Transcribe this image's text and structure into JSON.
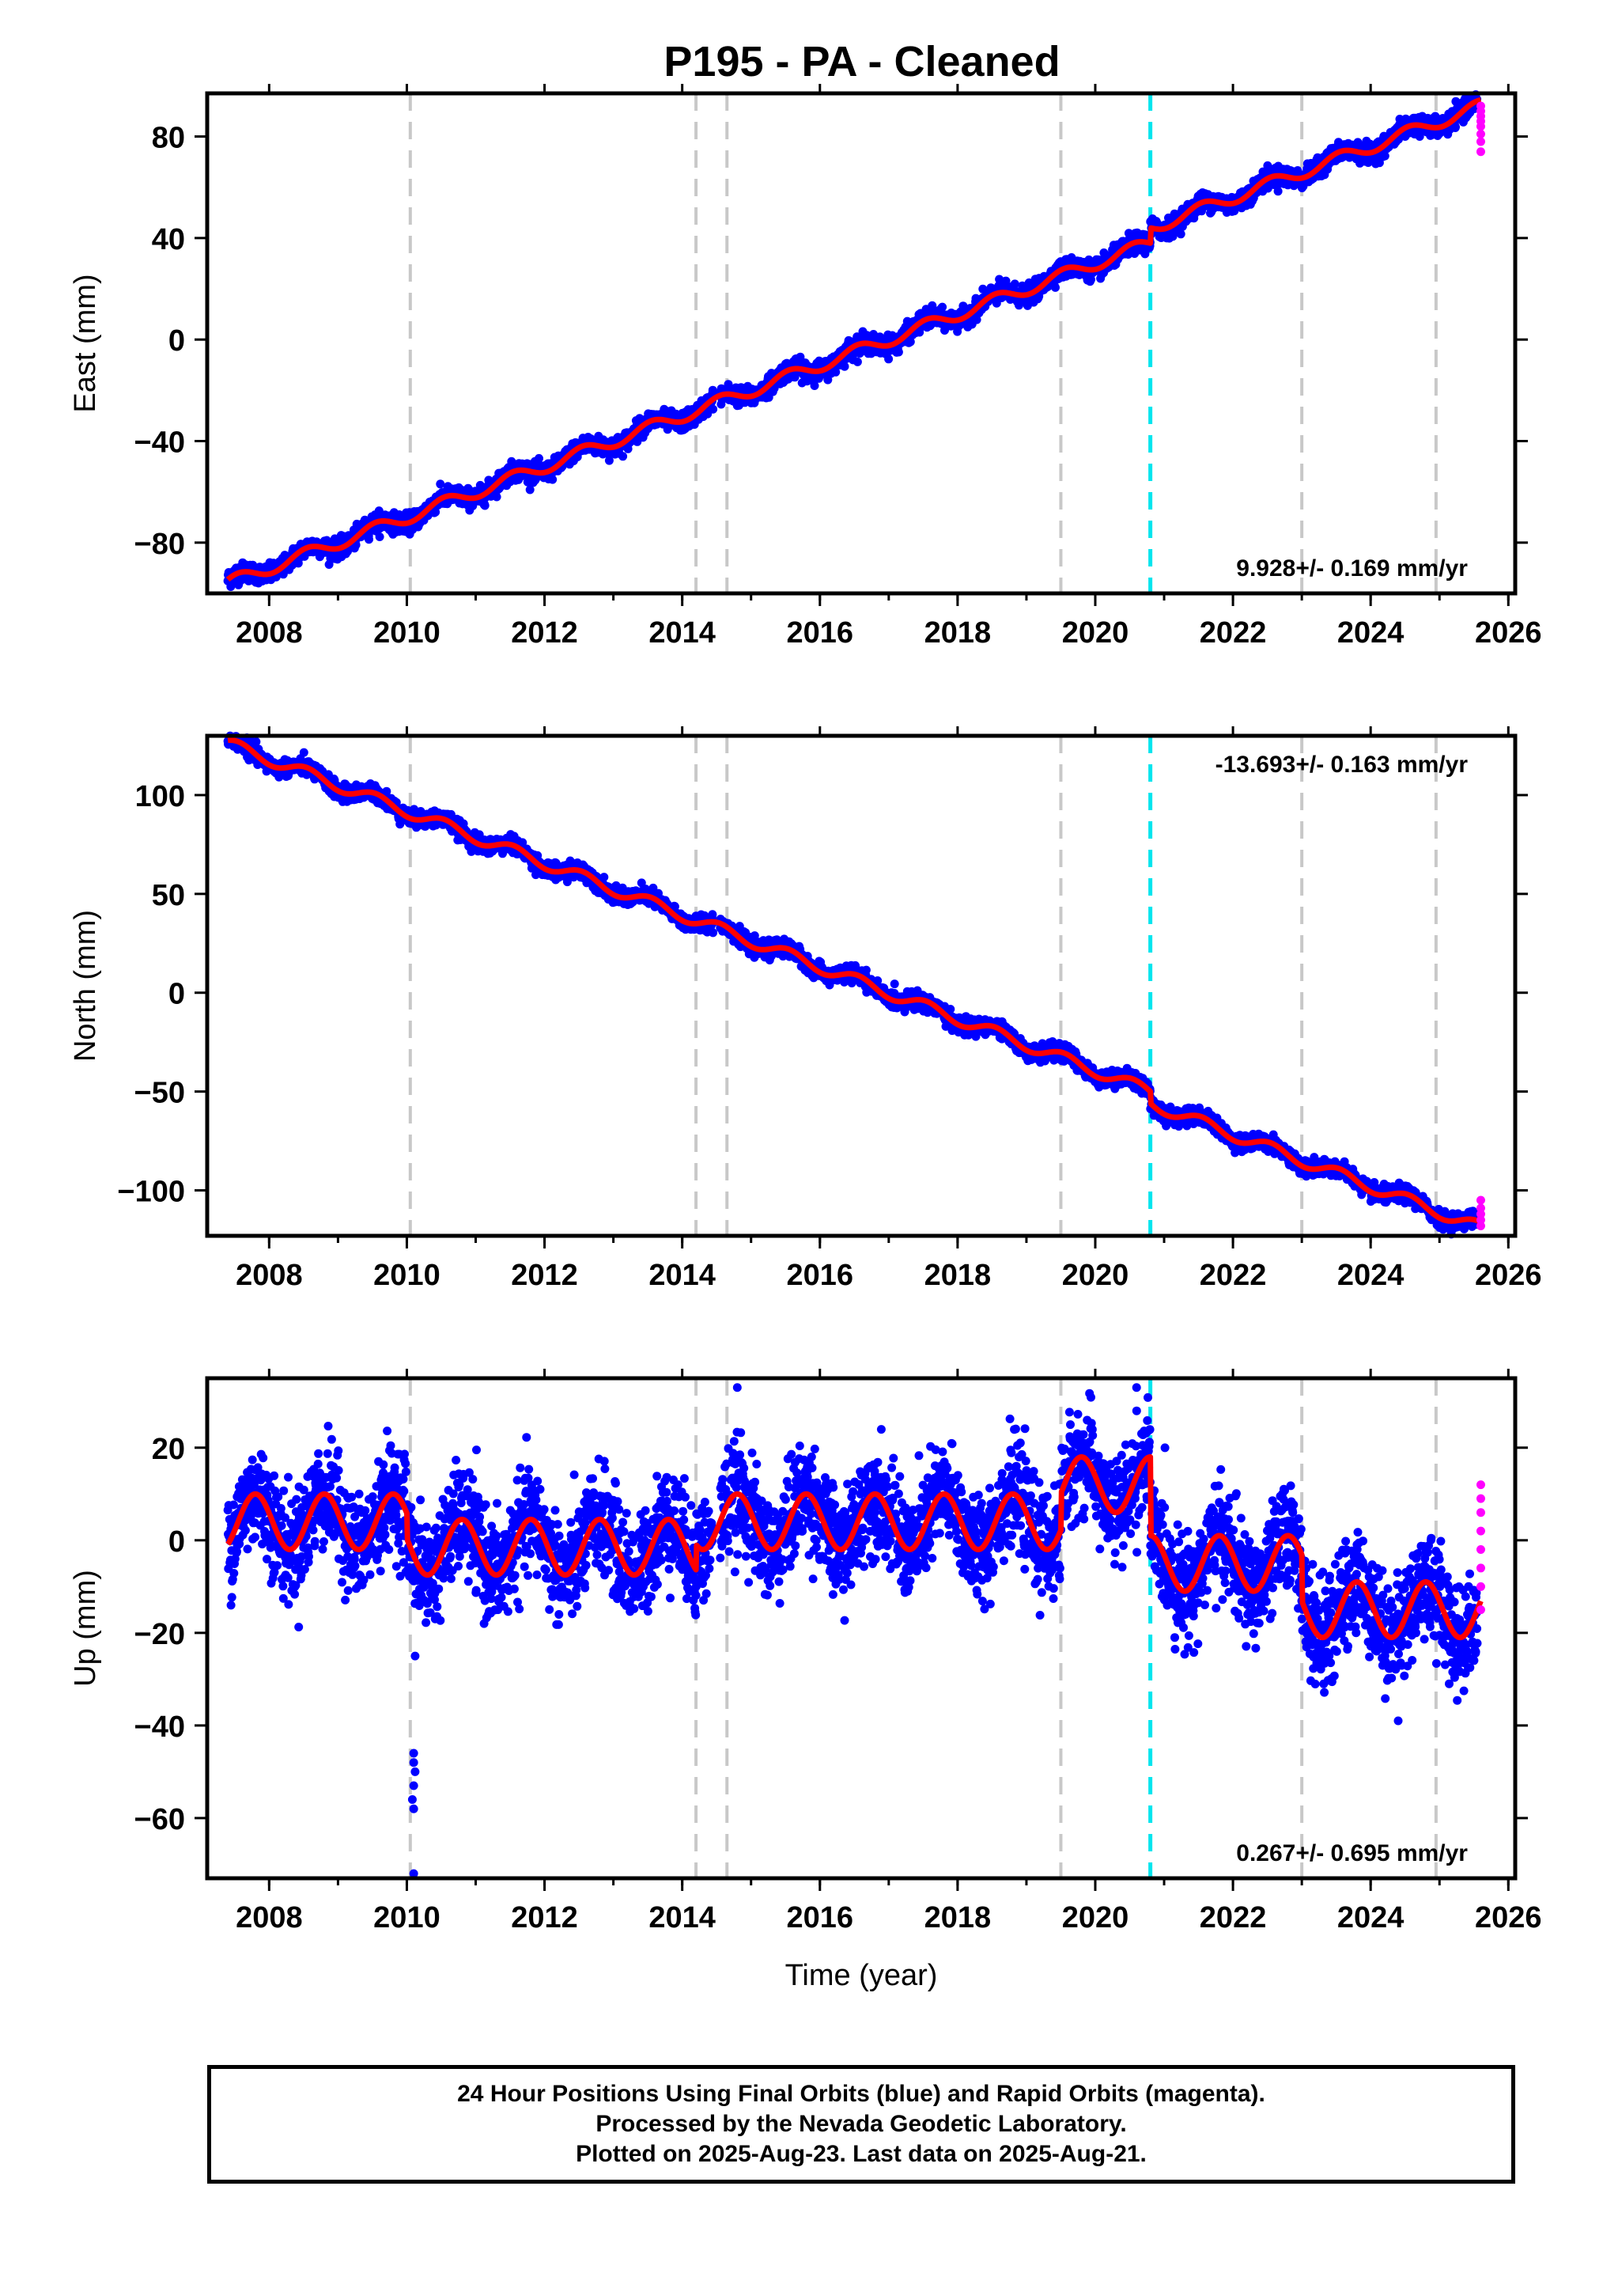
{
  "title": "P195  - PA - Cleaned",
  "footer": {
    "line1": "24 Hour Positions Using Final Orbits (blue) and Rapid Orbits (magenta).",
    "line2": "Processed by the Nevada Geodetic Laboratory.",
    "line3": "Plotted on 2025-Aug-23. Last data on 2025-Aug-21."
  },
  "colors": {
    "final_orbits": "#0000ff",
    "rapid_orbits": "#ff00ff",
    "fit": "#ff0000",
    "equipment_change": "#c8c8c8",
    "event": "#00e5ee"
  },
  "chart_data": [
    {
      "type": "scatter",
      "ylabel": "East (mm)",
      "xlabel": "",
      "xlim": [
        2007.1,
        2026.1
      ],
      "ylim": [
        -100,
        97
      ],
      "xticks": [
        2008,
        2010,
        2012,
        2014,
        2016,
        2018,
        2020,
        2022,
        2024,
        2026
      ],
      "yticks": [
        -80,
        -40,
        0,
        40,
        80
      ],
      "annotation": "9.928+/- 0.169 mm/yr",
      "annotation_position": "bottom-right",
      "rate_mm_per_yr": 9.928,
      "trend": {
        "start": [
          2007.4,
          -93
        ],
        "end": [
          2025.6,
          89
        ]
      },
      "seasonal_amplitude": 2.5,
      "steps": [
        {
          "at": 2020.8,
          "offset": 6
        }
      ],
      "noise": 1.8,
      "rapid_points": {
        "x": 2025.6,
        "y": [
          74,
          78,
          81,
          84,
          86,
          88,
          90,
          92
        ]
      },
      "grid": false
    },
    {
      "type": "scatter",
      "ylabel": "North (mm)",
      "xlabel": "",
      "xlim": [
        2007.1,
        2026.1
      ],
      "ylim": [
        -123,
        130
      ],
      "xticks": [
        2008,
        2010,
        2012,
        2014,
        2016,
        2018,
        2020,
        2022,
        2024,
        2026
      ],
      "yticks": [
        -100,
        -50,
        0,
        50,
        100
      ],
      "annotation": "-13.693+/- 0.163 mm/yr",
      "annotation_position": "top-right",
      "rate_mm_per_yr": -13.693,
      "trend": {
        "start": [
          2007.4,
          123
        ],
        "end": [
          2025.6,
          -116
        ]
      },
      "seasonal_amplitude": 3,
      "steps": [
        {
          "at": 2020.8,
          "offset": -6
        }
      ],
      "noise": 2,
      "rapid_points": {
        "x": 2025.6,
        "y": [
          -118,
          -115,
          -112,
          -109,
          -105
        ]
      },
      "grid": false
    },
    {
      "type": "scatter",
      "ylabel": "Up (mm)",
      "xlabel": "Time (year)",
      "xlim": [
        2007.1,
        2026.1
      ],
      "ylim": [
        -73,
        35
      ],
      "xticks": [
        2008,
        2010,
        2012,
        2014,
        2016,
        2018,
        2020,
        2022,
        2024,
        2026
      ],
      "yticks": [
        -60,
        -40,
        -20,
        0,
        20
      ],
      "annotation": "0.267+/- 0.695 mm/yr",
      "annotation_position": "bottom-right",
      "rate_mm_per_yr": 0.267,
      "fit_segments": [
        {
          "from": 2007.4,
          "to": 2010.0,
          "mean": 4,
          "amp": 6
        },
        {
          "from": 2010.0,
          "to": 2014.2,
          "mean": -1.5,
          "amp": 6
        },
        {
          "from": 2014.2,
          "to": 2019.5,
          "mean": 4,
          "amp": 6
        },
        {
          "from": 2019.5,
          "to": 2020.8,
          "mean": 12,
          "amp": 6
        },
        {
          "from": 2020.8,
          "to": 2023.0,
          "mean": -5,
          "amp": 6
        },
        {
          "from": 2023.0,
          "to": 2025.6,
          "mean": -15,
          "amp": 6
        }
      ],
      "noise": 5.5,
      "outliers": [
        {
          "x": 2010.1,
          "y": -46
        },
        {
          "x": 2010.1,
          "y": -48
        },
        {
          "x": 2010.12,
          "y": -50
        },
        {
          "x": 2010.1,
          "y": -53
        },
        {
          "x": 2010.08,
          "y": -56
        },
        {
          "x": 2010.1,
          "y": -58
        },
        {
          "x": 2010.1,
          "y": -72
        },
        {
          "x": 2010.12,
          "y": -25
        },
        {
          "x": 2014.8,
          "y": 33
        },
        {
          "x": 2020.6,
          "y": 33
        },
        {
          "x": 2024.4,
          "y": -39
        }
      ],
      "rapid_points": {
        "x": 2025.6,
        "y": [
          -15,
          -10,
          -6,
          -2,
          2,
          6,
          9,
          12
        ]
      },
      "grid": false
    }
  ],
  "vertical_markers": {
    "gray": [
      2010.05,
      2014.2,
      2014.65,
      2019.5,
      2023.0,
      2024.95
    ],
    "cyan": [
      2020.8
    ]
  }
}
